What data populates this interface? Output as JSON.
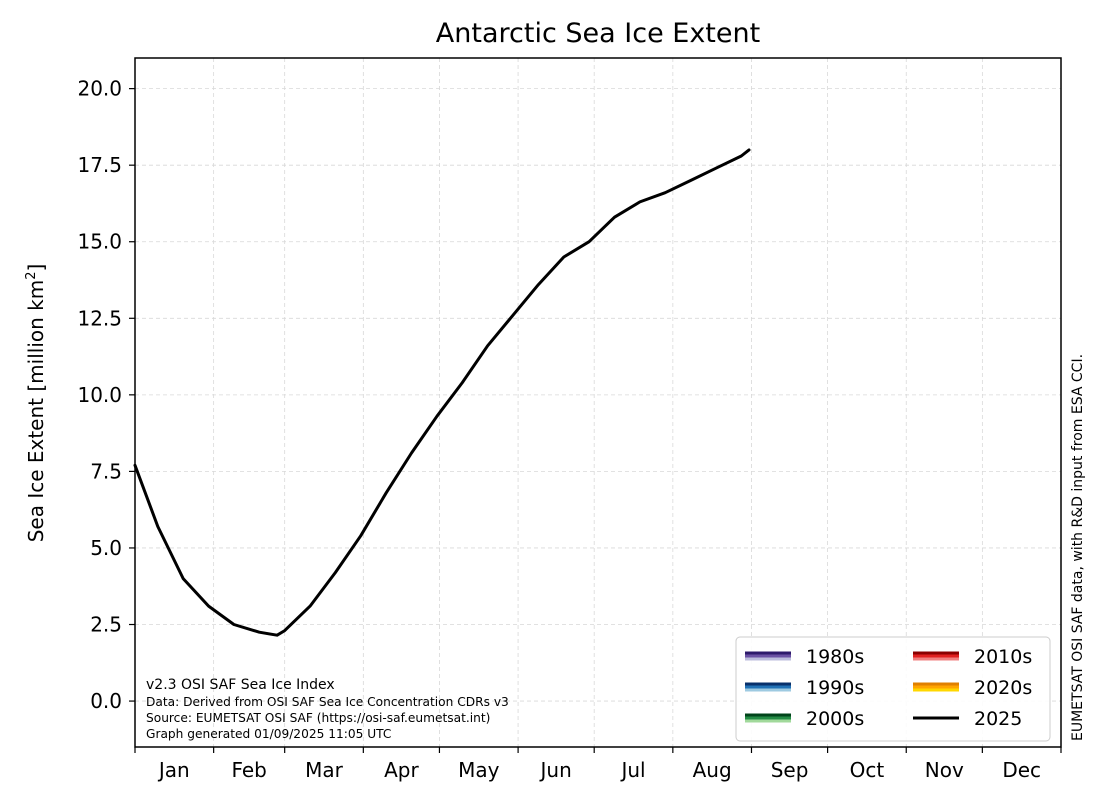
{
  "chart_data": {
    "type": "line",
    "title": "Antarctic Sea Ice Extent",
    "ylabel_prefix": "Sea Ice Extent [million km",
    "ylabel_sup": "2",
    "ylabel_suffix": "]",
    "ylim": [
      -1.5,
      21.0
    ],
    "yticks": [
      "0.0",
      "2.5",
      "5.0",
      "7.5",
      "10.0",
      "12.5",
      "15.0",
      "17.5",
      "20.0"
    ],
    "ytick_values": [
      0.0,
      2.5,
      5.0,
      7.5,
      10.0,
      12.5,
      15.0,
      17.5,
      20.0
    ],
    "xlim_day_of_year": [
      1,
      366
    ],
    "month_labels": [
      "Jan",
      "Feb",
      "Mar",
      "Apr",
      "May",
      "Jun",
      "Jul",
      "Aug",
      "Sep",
      "Oct",
      "Nov",
      "Dec"
    ],
    "month_start_days": [
      1,
      32,
      60,
      91,
      121,
      152,
      182,
      213,
      244,
      274,
      305,
      335,
      366
    ],
    "grid": true,
    "legend_position": "bottom-right",
    "legend": [
      {
        "label": "1980s",
        "colors": [
          "#2d1a6b",
          "#6a51a3",
          "#bcbddc"
        ]
      },
      {
        "label": "2010s",
        "colors": [
          "#8b0000",
          "#e02020",
          "#f08080"
        ]
      },
      {
        "label": "1990s",
        "colors": [
          "#08306b",
          "#2171b5",
          "#9ecae1"
        ]
      },
      {
        "label": "2020s",
        "colors": [
          "#e08000",
          "#ffa500",
          "#ffd700"
        ]
      },
      {
        "label": "2000s",
        "colors": [
          "#00441b",
          "#238b45",
          "#a1d99b"
        ]
      },
      {
        "label": "2025",
        "colors": [
          "#000000"
        ]
      }
    ],
    "series": [
      {
        "name": "2025",
        "color": "#000000",
        "width": 3,
        "x": [
          1,
          10,
          20,
          30,
          40,
          50,
          57,
          60,
          70,
          80,
          90,
          100,
          110,
          120,
          130,
          140,
          150,
          160,
          170,
          180,
          190,
          200,
          210,
          220,
          230,
          240,
          243
        ],
        "y": [
          7.7,
          5.7,
          4.0,
          3.1,
          2.5,
          2.25,
          2.15,
          2.3,
          3.1,
          4.2,
          5.4,
          6.8,
          8.1,
          9.3,
          10.4,
          11.6,
          12.6,
          13.6,
          14.5,
          15.0,
          15.8,
          16.3,
          16.6,
          17.0,
          17.4,
          17.8,
          18.0
        ]
      }
    ],
    "annotations": {
      "version": "v2.3 OSI SAF Sea Ice Index",
      "data_line": "Data: Derived from OSI SAF Sea Ice Concentration CDRs v3",
      "source_line": "Source: EUMETSAT OSI SAF (https://osi-saf.eumetsat.int)",
      "generated_line": "Graph generated 01/09/2025 11:05 UTC",
      "right_credit": "EUMETSAT OSI SAF data, with R&D input from ESA CCI."
    }
  }
}
